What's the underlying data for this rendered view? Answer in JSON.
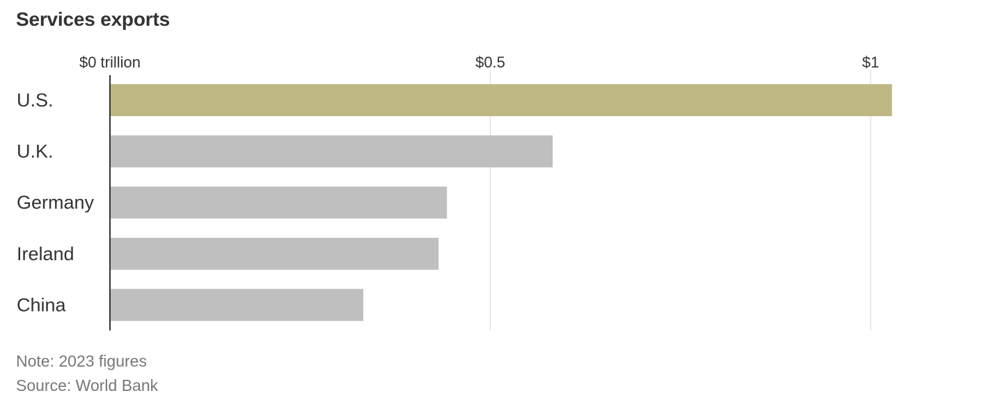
{
  "chart_data": {
    "type": "bar",
    "orientation": "horizontal",
    "title": "Services exports",
    "categories": [
      "U.S.",
      "U.K.",
      "Germany",
      "Ireland",
      "China"
    ],
    "values": [
      1.028,
      0.582,
      0.443,
      0.432,
      0.333
    ],
    "xlim": [
      0,
      1
    ],
    "ticks": [
      0,
      0.5,
      1
    ],
    "tick_labels": [
      "$0 trillion",
      "$0.5",
      "$1"
    ],
    "grid": true,
    "colors": {
      "highlight": "#c0b882",
      "default": "#bfbfbf",
      "gridline": "#dddddd",
      "axis": "#333333"
    },
    "highlight_index": 0
  },
  "notes": {
    "note": "Note: 2023 figures",
    "source": "Source: World Bank"
  }
}
